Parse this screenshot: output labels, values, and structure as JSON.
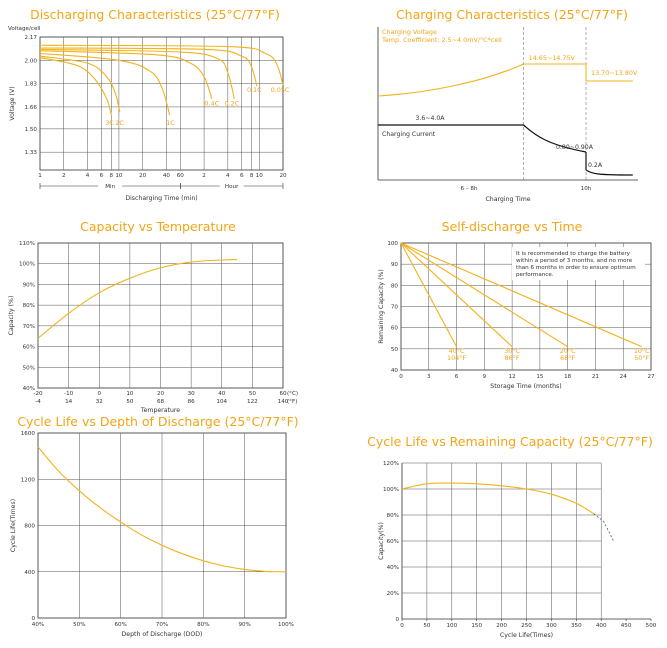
{
  "colors": {
    "accent": "#f2b31b",
    "title": "#f2a516",
    "ink": "#333333"
  },
  "chart_data": [
    {
      "type": "line",
      "title": "Discharging Characteristics (25°C/77°F)",
      "ylabel": "Voltage (V)",
      "y_axis_header": "Voltage/cell",
      "xlabel": "Discharging Time (min)",
      "ylim": [
        1.2,
        2.17
      ],
      "yticks": [
        {
          "v": 2.17,
          "label": "2.17"
        },
        {
          "v": 2.0,
          "label": "2.00"
        },
        {
          "v": 1.83,
          "label": "1.83"
        },
        {
          "v": 1.66,
          "label": "1.66"
        },
        {
          "v": 1.5,
          "label": "1.50"
        },
        {
          "v": 1.33,
          "label": "1.33"
        }
      ],
      "x_scale": "log",
      "xticks": [
        {
          "m": 1,
          "label": "1"
        },
        {
          "m": 2,
          "label": "2"
        },
        {
          "m": 4,
          "label": "4"
        },
        {
          "m": 6,
          "label": "6"
        },
        {
          "m": 8,
          "label": "8"
        },
        {
          "m": 10,
          "label": "10"
        },
        {
          "m": 20,
          "label": "20"
        },
        {
          "m": 40,
          "label": "40"
        },
        {
          "m": 60,
          "label": "60"
        },
        {
          "m": 120,
          "label": "2"
        },
        {
          "m": 240,
          "label": "4"
        },
        {
          "m": 360,
          "label": "6"
        },
        {
          "m": 480,
          "label": "8"
        },
        {
          "m": 600,
          "label": "10"
        },
        {
          "m": 1200,
          "label": "20"
        }
      ],
      "unit_spans": [
        {
          "label": "Min",
          "from": 1,
          "to": 60
        },
        {
          "label": "Hour",
          "from": 60,
          "to": 1200
        }
      ],
      "series": [
        {
          "name": "3C",
          "label_at": [
            7.6,
            1.53
          ],
          "points": [
            [
              1,
              2.02
            ],
            [
              3,
              1.96
            ],
            [
              5,
              1.86
            ],
            [
              7,
              1.72
            ],
            [
              8,
              1.6
            ]
          ]
        },
        {
          "name": "2C",
          "label_at": [
            10.2,
            1.53
          ],
          "points": [
            [
              1,
              2.03
            ],
            [
              4,
              1.98
            ],
            [
              7,
              1.88
            ],
            [
              9,
              1.76
            ],
            [
              10.3,
              1.62
            ]
          ]
        },
        {
          "name": "1C",
          "label_at": [
            45,
            1.53
          ],
          "points": [
            [
              1,
              2.05
            ],
            [
              10,
              2.0
            ],
            [
              25,
              1.92
            ],
            [
              35,
              1.8
            ],
            [
              44,
              1.6
            ]
          ]
        },
        {
          "name": "0.4C",
          "label_at": [
            150,
            1.67
          ],
          "points": [
            [
              1,
              2.07
            ],
            [
              30,
              2.04
            ],
            [
              80,
              1.98
            ],
            [
              120,
              1.88
            ],
            [
              150,
              1.72
            ]
          ]
        },
        {
          "name": "0.2C",
          "label_at": [
            270,
            1.67
          ],
          "points": [
            [
              1,
              2.08
            ],
            [
              60,
              2.06
            ],
            [
              180,
              2.01
            ],
            [
              240,
              1.91
            ],
            [
              290,
              1.72
            ]
          ]
        },
        {
          "name": "0.1C",
          "label_at": [
            520,
            1.77
          ],
          "points": [
            [
              1,
              2.09
            ],
            [
              120,
              2.08
            ],
            [
              360,
              2.03
            ],
            [
              480,
              1.95
            ],
            [
              560,
              1.81
            ]
          ]
        },
        {
          "name": "0.05C",
          "label_at": [
            1100,
            1.77
          ],
          "points": [
            [
              1,
              2.11
            ],
            [
              240,
              2.1
            ],
            [
              720,
              2.05
            ],
            [
              1000,
              1.97
            ],
            [
              1200,
              1.82
            ]
          ]
        }
      ]
    },
    {
      "type": "line",
      "title": "Charging Characteristics (25°C/77°F)",
      "xlabel": "Charging Time",
      "xticks": [
        {
          "t": 7,
          "label": "6 – 8h"
        },
        {
          "t": 16,
          "label": "10h"
        }
      ],
      "xlim": [
        0,
        20
      ],
      "labels": {
        "voltage_title": "Charging Voltage",
        "coefficient": "Temp. Coefficient: 2.5~4.0mV/°C*cell",
        "v_boost": "14.65~14.75V",
        "v_float": "13.70~13.80V",
        "current_label": "Charging Current",
        "i_bulk": "3.6~4.0A",
        "i_absorb": "0.80~0.90A",
        "i_float": "0.2A"
      }
    },
    {
      "type": "line",
      "title": "Capacity vs Temperature",
      "ylabel": "Capacity (%)",
      "xlabel": "Temperature",
      "x_unit_c": "(°C)",
      "x_unit_f": "(°F)",
      "xlim": [
        -20,
        60
      ],
      "ylim": [
        40,
        110
      ],
      "yticks": [
        "110%",
        "100%",
        "90%",
        "80%",
        "70%",
        "60%",
        "50%",
        "40%"
      ],
      "xticks_c": [
        "-20",
        "-10",
        "0",
        "10",
        "20",
        "30",
        "40",
        "50",
        "60"
      ],
      "xticks_f": [
        "-4",
        "14",
        "32",
        "50",
        "68",
        "86",
        "104",
        "122",
        "140"
      ],
      "points": [
        [
          -20,
          64
        ],
        [
          -10,
          76
        ],
        [
          0,
          86
        ],
        [
          10,
          93
        ],
        [
          20,
          98
        ],
        [
          30,
          100.8
        ],
        [
          40,
          101.8
        ],
        [
          45,
          102
        ]
      ]
    },
    {
      "type": "line",
      "title": "Self-discharge vs Time",
      "ylabel": "Remaining Capacity (%)",
      "xlabel": "Storage Time (months)",
      "xlim": [
        0,
        27
      ],
      "ylim": [
        40,
        100
      ],
      "xticks": [
        "0",
        "3",
        "6",
        "9",
        "12",
        "15",
        "18",
        "21",
        "24",
        "27"
      ],
      "yticks": [
        "100",
        "90",
        "80",
        "70",
        "60",
        "50",
        "40"
      ],
      "note": "It is recommended to charge the battery within a period of 3 months, and no more than 6 months in order to ensure optimum performance.",
      "series": [
        {
          "name": "40°C",
          "name_f": "104°F",
          "end": [
            6,
            51
          ],
          "label_x": 6
        },
        {
          "name": "30°C",
          "name_f": "86°F",
          "end": [
            12,
            51
          ],
          "label_x": 12
        },
        {
          "name": "20°C",
          "name_f": "68°F",
          "end": [
            18,
            51
          ],
          "label_x": 18
        },
        {
          "name": "10°C",
          "name_f": "50°F",
          "end": [
            26,
            51
          ],
          "label_x": 26
        }
      ]
    },
    {
      "type": "line",
      "title": "Cycle Life vs Depth of Discharge (25°C/77°F)",
      "ylabel": "Cycle Life(Times)",
      "xlabel": "Depth of Discharge (DOD)",
      "xlim": [
        40,
        100
      ],
      "ylim": [
        0,
        1600
      ],
      "xticks": [
        "40%",
        "50%",
        "60%",
        "70%",
        "80%",
        "90%",
        "100%"
      ],
      "yticks": [
        "1600",
        "1200",
        "800",
        "400",
        "0"
      ],
      "points": [
        [
          40,
          1480
        ],
        [
          45,
          1270
        ],
        [
          50,
          1100
        ],
        [
          55,
          955
        ],
        [
          60,
          830
        ],
        [
          65,
          720
        ],
        [
          70,
          630
        ],
        [
          75,
          555
        ],
        [
          80,
          495
        ],
        [
          85,
          450
        ],
        [
          90,
          420
        ],
        [
          95,
          403
        ],
        [
          100,
          400
        ]
      ]
    },
    {
      "type": "line",
      "title": "Cycle Life vs Remaining Capacity (25°C/77°F)",
      "ylabel": "Capacity(%)",
      "xlabel": "Cycle Life(Times)",
      "xlim": [
        0,
        500
      ],
      "ylim": [
        0,
        120
      ],
      "xticks": [
        "0",
        "50",
        "100",
        "150",
        "200",
        "250",
        "300",
        "350",
        "400",
        "450",
        "500"
      ],
      "yticks": [
        "120%",
        "100%",
        "80%",
        "60%",
        "40%",
        "20%",
        "0"
      ],
      "points": [
        [
          0,
          100
        ],
        [
          50,
          104
        ],
        [
          100,
          104.5
        ],
        [
          150,
          104
        ],
        [
          200,
          102.5
        ],
        [
          250,
          100
        ],
        [
          300,
          96
        ],
        [
          350,
          89
        ],
        [
          385,
          81
        ]
      ],
      "extrapolated": [
        [
          385,
          81
        ],
        [
          405,
          75
        ],
        [
          425,
          60
        ]
      ]
    }
  ]
}
